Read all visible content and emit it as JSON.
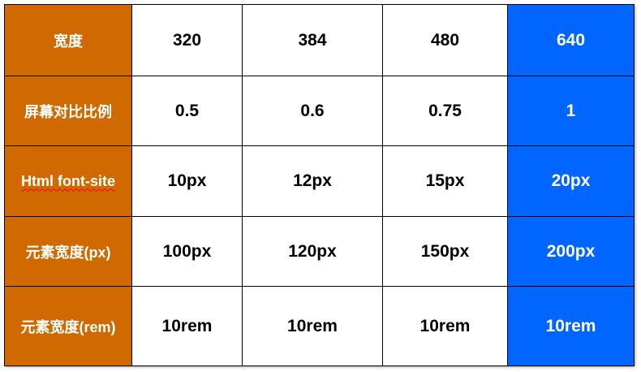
{
  "table": {
    "rows": [
      {
        "label": "宽度",
        "cells": [
          "320",
          "384",
          "480",
          "640"
        ]
      },
      {
        "label": "屏幕对比比例",
        "cells": [
          "0.5",
          "0.6",
          "0.75",
          "1"
        ]
      },
      {
        "label": "Html font-site",
        "cells": [
          "10px",
          "12px",
          "15px",
          "20px"
        ]
      },
      {
        "label": "元素宽度(px)",
        "cells": [
          "100px",
          "120px",
          "150px",
          "200px"
        ]
      },
      {
        "label": "元素宽度(rem)",
        "cells": [
          "10rem",
          "10rem",
          "10rem",
          "10rem"
        ]
      }
    ]
  },
  "colors": {
    "label_bg": "#d06a00",
    "highlight_bg": "#0066ff"
  }
}
